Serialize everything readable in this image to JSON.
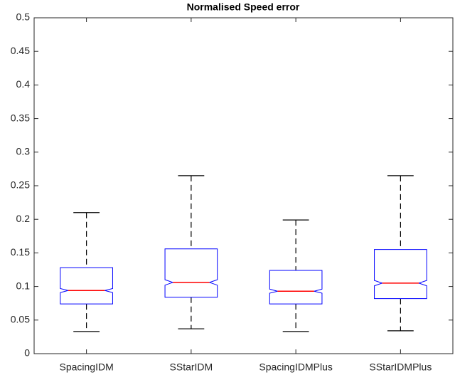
{
  "chart_data": {
    "type": "box",
    "title": "Normalised Speed error",
    "categories": [
      "SpacingIDM",
      "SStarIDM",
      "SpacingIDMPlus",
      "SStarIDMPlus"
    ],
    "boxes": [
      {
        "min": 0.033,
        "q1": 0.074,
        "median": 0.094,
        "q3": 0.128,
        "max": 0.21,
        "notch_low": 0.091,
        "notch_high": 0.097
      },
      {
        "min": 0.037,
        "q1": 0.084,
        "median": 0.106,
        "q3": 0.156,
        "max": 0.265,
        "notch_low": 0.102,
        "notch_high": 0.11
      },
      {
        "min": 0.033,
        "q1": 0.074,
        "median": 0.093,
        "q3": 0.124,
        "max": 0.199,
        "notch_low": 0.09,
        "notch_high": 0.096
      },
      {
        "min": 0.034,
        "q1": 0.082,
        "median": 0.105,
        "q3": 0.155,
        "max": 0.265,
        "notch_low": 0.101,
        "notch_high": 0.109
      }
    ],
    "box_color": "#0000ff",
    "median_color": "#ff0000",
    "whisker_color": "#000000",
    "ylim": [
      0,
      0.5
    ],
    "yticks": [
      0,
      0.05,
      0.1,
      0.15,
      0.2,
      0.25,
      0.3,
      0.35,
      0.4,
      0.45,
      0.5
    ],
    "grid": false
  }
}
